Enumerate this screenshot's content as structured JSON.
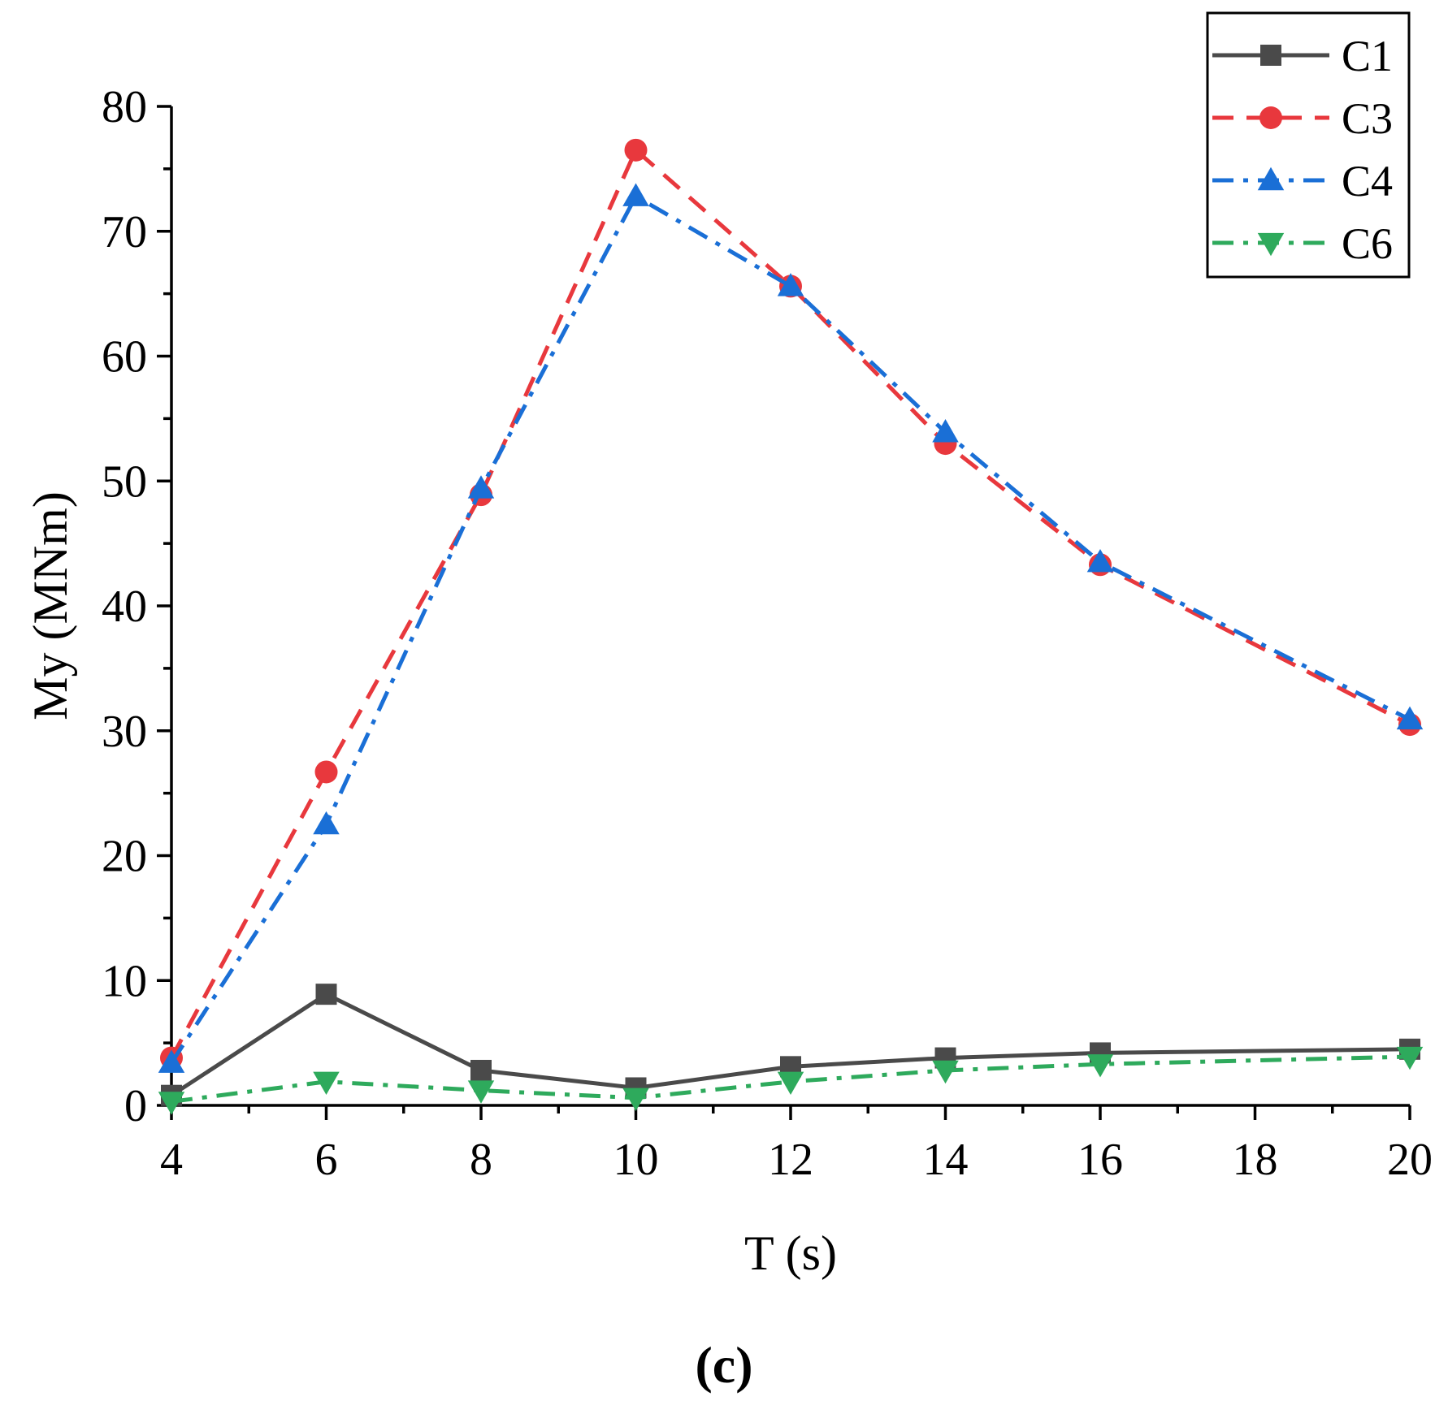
{
  "chart_data": {
    "type": "line",
    "title": "",
    "xlabel": "T (s)",
    "ylabel": "My (MNm)",
    "xlim": [
      4,
      20
    ],
    "ylim": [
      0,
      80
    ],
    "x_ticks": [
      4,
      6,
      8,
      10,
      12,
      14,
      16,
      18,
      20
    ],
    "y_ticks": [
      0,
      10,
      20,
      30,
      40,
      50,
      60,
      70,
      80
    ],
    "x_tick_labels": [
      "4",
      "6",
      "8",
      "10",
      "12",
      "14",
      "16",
      "18",
      "20"
    ],
    "y_tick_labels": [
      "0",
      "10",
      "20",
      "30",
      "40",
      "50",
      "60",
      "70",
      "80"
    ],
    "grid": false,
    "legend_position": "top-right",
    "panel_label": "(c)",
    "x": [
      4,
      6,
      8,
      10,
      12,
      14,
      16,
      20
    ],
    "series": [
      {
        "name": "C1",
        "color": "#4a4a4a",
        "dash": "solid",
        "marker": "square",
        "values": [
          0.8,
          8.9,
          2.8,
          1.4,
          3.1,
          3.8,
          4.2,
          4.5
        ]
      },
      {
        "name": "C3",
        "color": "#e8383d",
        "dash": "dash",
        "marker": "circle",
        "values": [
          3.8,
          26.7,
          48.9,
          76.5,
          65.6,
          53.0,
          43.3,
          30.5
        ]
      },
      {
        "name": "C4",
        "color": "#1a6fd6",
        "dash": "dashdot",
        "marker": "triangle-up",
        "values": [
          3.4,
          22.5,
          49.4,
          72.8,
          65.6,
          53.9,
          43.5,
          30.9
        ]
      },
      {
        "name": "C6",
        "color": "#2eaa5c",
        "dash": "dashdot",
        "marker": "triangle-down",
        "values": [
          0.3,
          1.9,
          1.2,
          0.6,
          1.9,
          2.8,
          3.3,
          3.9
        ]
      }
    ]
  }
}
